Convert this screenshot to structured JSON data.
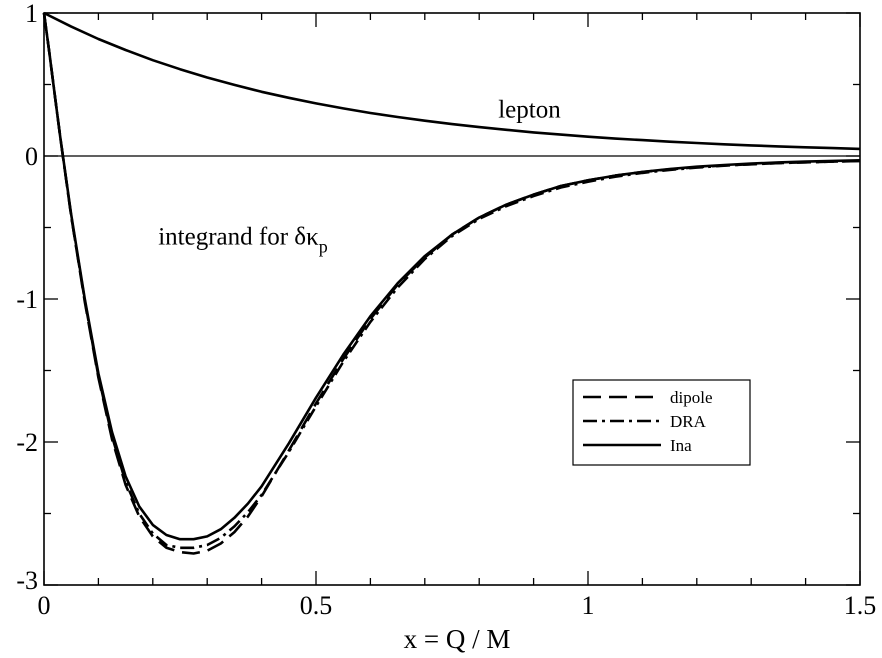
{
  "chart_data": {
    "type": "line",
    "title": "",
    "xlabel": "x = Q / M",
    "ylabel": "",
    "xlim": [
      0,
      1.5
    ],
    "ylim": [
      -3,
      1
    ],
    "x_ticks": [
      {
        "value": 0,
        "label": "0"
      },
      {
        "value": 0.5,
        "label": "0.5"
      },
      {
        "value": 1,
        "label": "1"
      },
      {
        "value": 1.5,
        "label": "1.5"
      }
    ],
    "y_ticks": [
      {
        "value": 1,
        "label": "1"
      },
      {
        "value": 0,
        "label": "0"
      },
      {
        "value": -1,
        "label": "-1"
      },
      {
        "value": -2,
        "label": "-2"
      },
      {
        "value": -3,
        "label": "-3"
      }
    ],
    "zero_line": true,
    "legend_position": "lower-right",
    "annotations": {
      "lepton": "lepton",
      "integrand_prefix": "integrand for ",
      "integrand_symbol": "δκ",
      "integrand_subscript": "p"
    },
    "series": [
      {
        "name": "dipole",
        "style": "dashed",
        "in_legend": true,
        "x": [
          0,
          0.01,
          0.02,
          0.03,
          0.05,
          0.075,
          0.1,
          0.125,
          0.15,
          0.175,
          0.2,
          0.225,
          0.25,
          0.275,
          0.3,
          0.325,
          0.35,
          0.375,
          0.4,
          0.45,
          0.5,
          0.55,
          0.6,
          0.65,
          0.7,
          0.75,
          0.8,
          0.85,
          0.9,
          0.95,
          1.0,
          1.05,
          1.1,
          1.15,
          1.2,
          1.25,
          1.3,
          1.35,
          1.4,
          1.45,
          1.5
        ],
        "y": [
          1,
          0.72,
          0.42,
          0.13,
          -0.42,
          -1.02,
          -1.55,
          -1.98,
          -2.3,
          -2.52,
          -2.66,
          -2.74,
          -2.77,
          -2.78,
          -2.76,
          -2.71,
          -2.63,
          -2.52,
          -2.38,
          -2.06,
          -1.73,
          -1.42,
          -1.14,
          -0.9,
          -0.71,
          -0.55,
          -0.43,
          -0.34,
          -0.27,
          -0.21,
          -0.17,
          -0.137,
          -0.112,
          -0.093,
          -0.078,
          -0.066,
          -0.057,
          -0.05,
          -0.044,
          -0.039,
          -0.035
        ]
      },
      {
        "name": "DRA",
        "style": "dash-dot",
        "in_legend": true,
        "x": [
          0,
          0.01,
          0.02,
          0.03,
          0.05,
          0.075,
          0.1,
          0.125,
          0.15,
          0.175,
          0.2,
          0.225,
          0.25,
          0.275,
          0.3,
          0.325,
          0.35,
          0.375,
          0.4,
          0.45,
          0.5,
          0.55,
          0.6,
          0.65,
          0.7,
          0.75,
          0.8,
          0.85,
          0.9,
          0.95,
          1.0,
          1.05,
          1.1,
          1.15,
          1.2,
          1.25,
          1.3,
          1.35,
          1.4,
          1.45,
          1.5
        ],
        "y": [
          1,
          0.72,
          0.42,
          0.13,
          -0.42,
          -1.01,
          -1.54,
          -1.96,
          -2.28,
          -2.5,
          -2.64,
          -2.72,
          -2.74,
          -2.74,
          -2.72,
          -2.67,
          -2.59,
          -2.49,
          -2.37,
          -2.07,
          -1.75,
          -1.44,
          -1.16,
          -0.92,
          -0.72,
          -0.56,
          -0.44,
          -0.35,
          -0.28,
          -0.22,
          -0.18,
          -0.145,
          -0.118,
          -0.097,
          -0.081,
          -0.068,
          -0.058,
          -0.05,
          -0.044,
          -0.039,
          -0.034
        ]
      },
      {
        "name": "Ina",
        "style": "solid",
        "in_legend": true,
        "x": [
          0,
          0.01,
          0.02,
          0.03,
          0.05,
          0.075,
          0.1,
          0.125,
          0.15,
          0.175,
          0.2,
          0.225,
          0.25,
          0.275,
          0.3,
          0.325,
          0.35,
          0.375,
          0.4,
          0.45,
          0.5,
          0.55,
          0.6,
          0.65,
          0.7,
          0.75,
          0.8,
          0.85,
          0.9,
          0.95,
          1.0,
          1.05,
          1.1,
          1.15,
          1.2,
          1.25,
          1.3,
          1.35,
          1.4,
          1.45,
          1.5
        ],
        "y": [
          1,
          0.72,
          0.42,
          0.13,
          -0.41,
          -1.0,
          -1.52,
          -1.93,
          -2.24,
          -2.45,
          -2.58,
          -2.65,
          -2.68,
          -2.68,
          -2.66,
          -2.61,
          -2.53,
          -2.43,
          -2.31,
          -2.01,
          -1.69,
          -1.39,
          -1.12,
          -0.89,
          -0.7,
          -0.55,
          -0.43,
          -0.34,
          -0.27,
          -0.21,
          -0.17,
          -0.137,
          -0.111,
          -0.091,
          -0.075,
          -0.063,
          -0.053,
          -0.045,
          -0.039,
          -0.034,
          -0.03
        ]
      },
      {
        "name": "lepton",
        "style": "solid",
        "in_legend": false,
        "x": [
          0,
          0.05,
          0.1,
          0.15,
          0.2,
          0.25,
          0.3,
          0.35,
          0.4,
          0.45,
          0.5,
          0.55,
          0.6,
          0.65,
          0.7,
          0.75,
          0.8,
          0.85,
          0.9,
          0.95,
          1.0,
          1.05,
          1.1,
          1.15,
          1.2,
          1.25,
          1.3,
          1.35,
          1.4,
          1.45,
          1.5
        ],
        "y": [
          1,
          0.905,
          0.818,
          0.741,
          0.67,
          0.607,
          0.549,
          0.497,
          0.449,
          0.407,
          0.368,
          0.333,
          0.301,
          0.273,
          0.247,
          0.223,
          0.202,
          0.183,
          0.165,
          0.15,
          0.135,
          0.122,
          0.111,
          0.1,
          0.091,
          0.082,
          0.074,
          0.067,
          0.061,
          0.055,
          0.05
        ]
      }
    ]
  }
}
